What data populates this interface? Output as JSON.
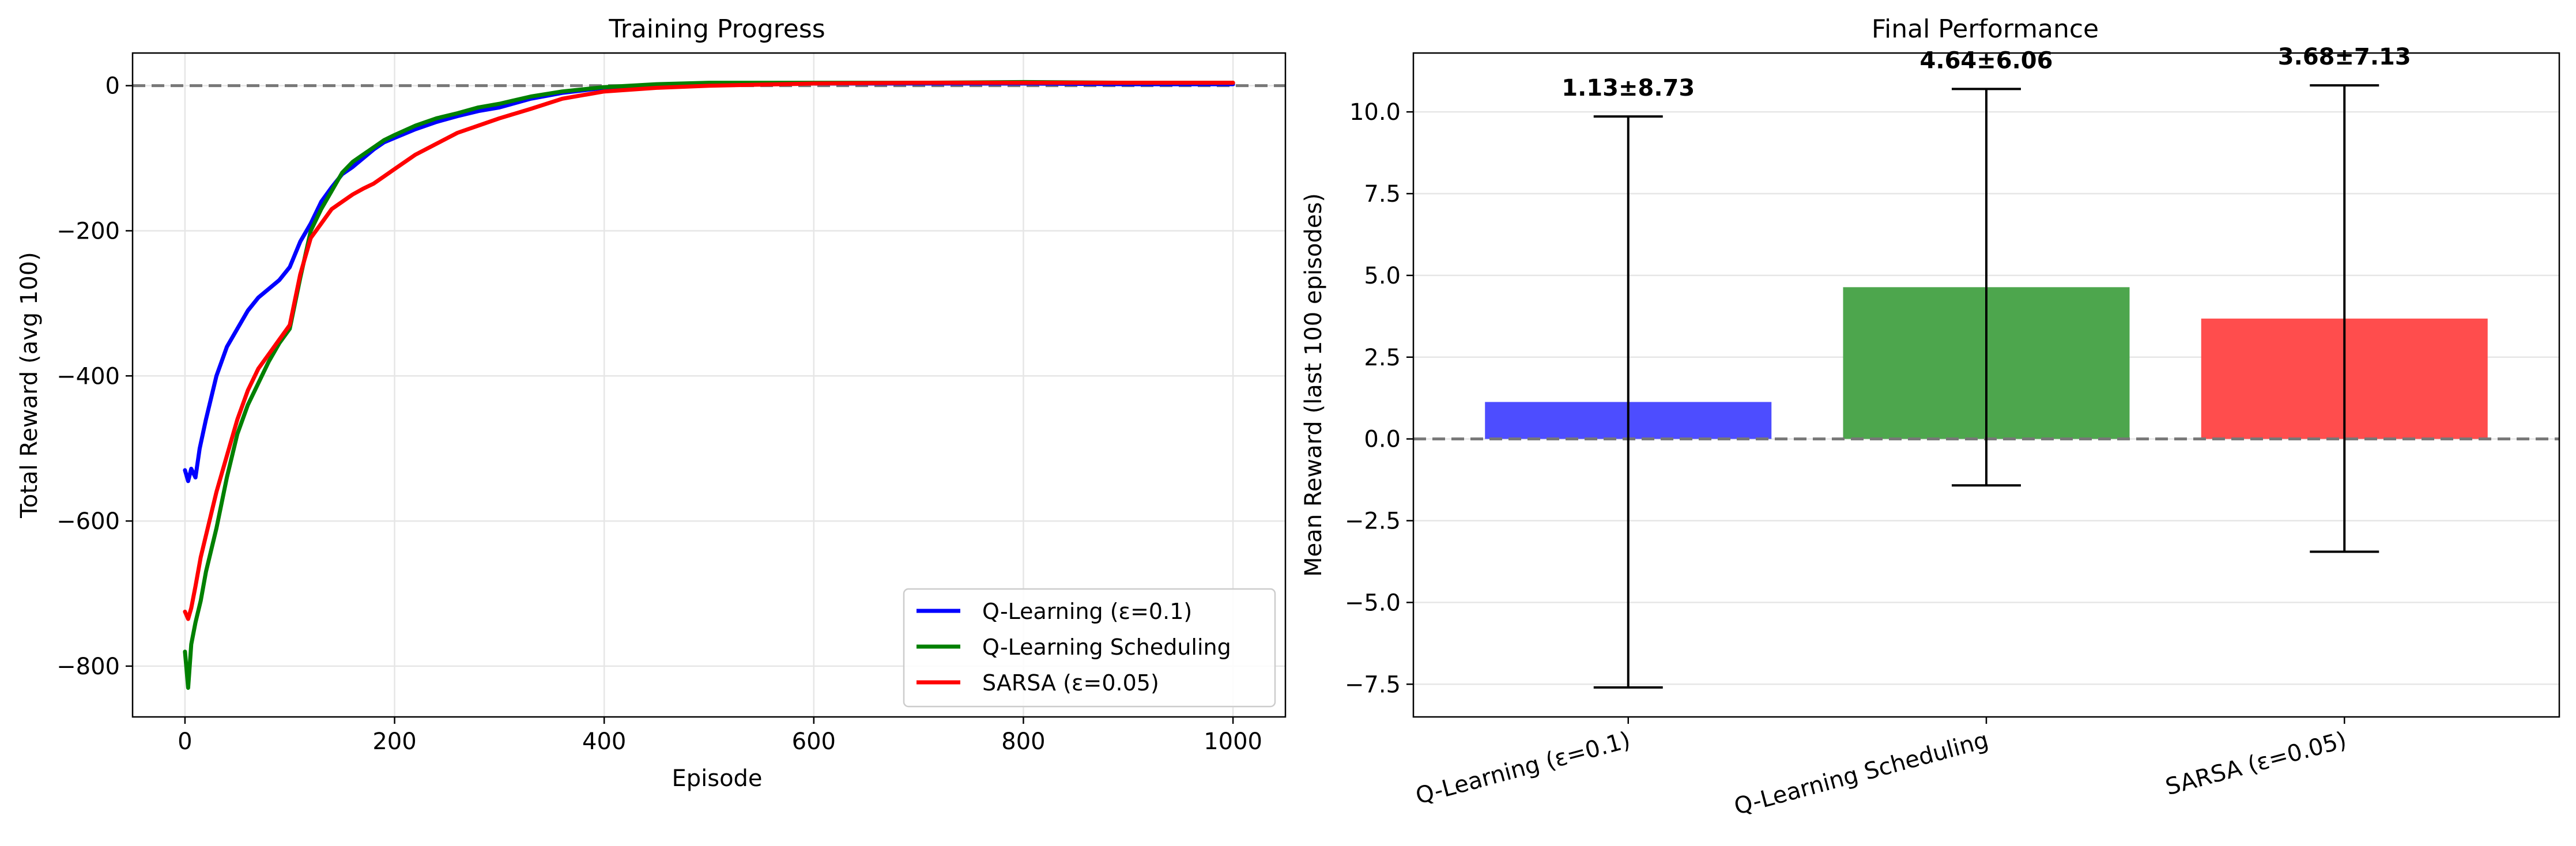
{
  "chart_data": [
    {
      "type": "line",
      "title": "Training Progress",
      "xlabel": "Episode",
      "ylabel": "Total Reward (avg 100)",
      "xlim": [
        -50,
        1050
      ],
      "ylim": [
        -870,
        45
      ],
      "xticks": [
        0,
        200,
        400,
        600,
        800,
        1000
      ],
      "yticks": [
        -800,
        -600,
        -400,
        -200,
        0
      ],
      "xtick_labels": [
        "0",
        "200",
        "400",
        "600",
        "800",
        "1000"
      ],
      "ytick_labels": [
        "−800",
        "−600",
        "−400",
        "−200",
        "0"
      ],
      "grid": true,
      "legend_position": "lower-right",
      "reference_line": {
        "y": 0,
        "style": "dashed",
        "color": "#777777"
      },
      "series": [
        {
          "name": "Q-Learning (ε=0.1)",
          "color": "#0000ff",
          "x": [
            0,
            3,
            6,
            10,
            14,
            20,
            30,
            40,
            50,
            60,
            70,
            80,
            90,
            100,
            110,
            120,
            130,
            140,
            150,
            160,
            170,
            180,
            190,
            200,
            220,
            240,
            260,
            280,
            300,
            330,
            360,
            400,
            450,
            500,
            600,
            700,
            800,
            900,
            1000
          ],
          "y": [
            -530,
            -545,
            -528,
            -540,
            -500,
            -460,
            -400,
            -360,
            -335,
            -310,
            -292,
            -280,
            -268,
            -250,
            -215,
            -190,
            -160,
            -140,
            -122,
            -112,
            -100,
            -88,
            -78,
            -72,
            -60,
            -50,
            -42,
            -35,
            -30,
            -18,
            -10,
            -3,
            0,
            2,
            3,
            3,
            3,
            2,
            2
          ]
        },
        {
          "name": "Q-Learning Scheduling",
          "color": "#008000",
          "x": [
            0,
            3,
            6,
            10,
            15,
            20,
            30,
            40,
            50,
            60,
            70,
            80,
            90,
            100,
            110,
            120,
            130,
            140,
            150,
            160,
            170,
            180,
            190,
            200,
            220,
            240,
            260,
            280,
            300,
            330,
            360,
            400,
            450,
            500,
            600,
            700,
            800,
            900,
            1000
          ],
          "y": [
            -780,
            -830,
            -770,
            -740,
            -710,
            -670,
            -610,
            -540,
            -480,
            -440,
            -410,
            -380,
            -355,
            -335,
            -265,
            -200,
            -170,
            -145,
            -120,
            -105,
            -95,
            -85,
            -75,
            -68,
            -55,
            -45,
            -38,
            -30,
            -25,
            -15,
            -8,
            -2,
            2,
            4,
            4,
            4,
            5,
            4,
            4
          ]
        },
        {
          "name": "SARSA (ε=0.05)",
          "color": "#ff0000",
          "x": [
            0,
            3,
            6,
            10,
            15,
            20,
            30,
            40,
            50,
            60,
            70,
            80,
            90,
            100,
            110,
            120,
            130,
            140,
            150,
            160,
            170,
            180,
            190,
            200,
            220,
            240,
            260,
            280,
            300,
            330,
            360,
            400,
            450,
            500,
            600,
            700,
            800,
            900,
            1000
          ],
          "y": [
            -725,
            -735,
            -720,
            -690,
            -650,
            -620,
            -560,
            -510,
            -460,
            -420,
            -390,
            -370,
            -350,
            -330,
            -260,
            -210,
            -190,
            -170,
            -160,
            -150,
            -142,
            -135,
            -125,
            -115,
            -95,
            -80,
            -65,
            -55,
            -45,
            -32,
            -18,
            -8,
            -3,
            0,
            3,
            4,
            4,
            4,
            4
          ]
        }
      ]
    },
    {
      "type": "bar",
      "title": "Final Performance",
      "xlabel": "",
      "ylabel": "Mean Reward (last 100 episodes)",
      "ylim": [
        -8.5,
        11.8
      ],
      "yticks": [
        -7.5,
        -5.0,
        -2.5,
        0.0,
        2.5,
        5.0,
        7.5,
        10.0
      ],
      "ytick_labels": [
        "−7.5",
        "−5.0",
        "−2.5",
        "0.0",
        "2.5",
        "5.0",
        "7.5",
        "10.0"
      ],
      "grid": true,
      "reference_line": {
        "y": 0,
        "style": "dashed",
        "color": "#777777"
      },
      "categories": [
        "Q-Learning (ε=0.1)",
        "Q-Learning Scheduling",
        "SARSA (ε=0.05)"
      ],
      "values": [
        1.13,
        4.64,
        3.68
      ],
      "errors": [
        8.73,
        6.06,
        7.13
      ],
      "value_labels": [
        "1.13±8.73",
        "4.64±6.06",
        "3.68±7.13"
      ],
      "colors": [
        "#4d4dff",
        "#4da64d",
        "#ff4d4d"
      ]
    }
  ]
}
